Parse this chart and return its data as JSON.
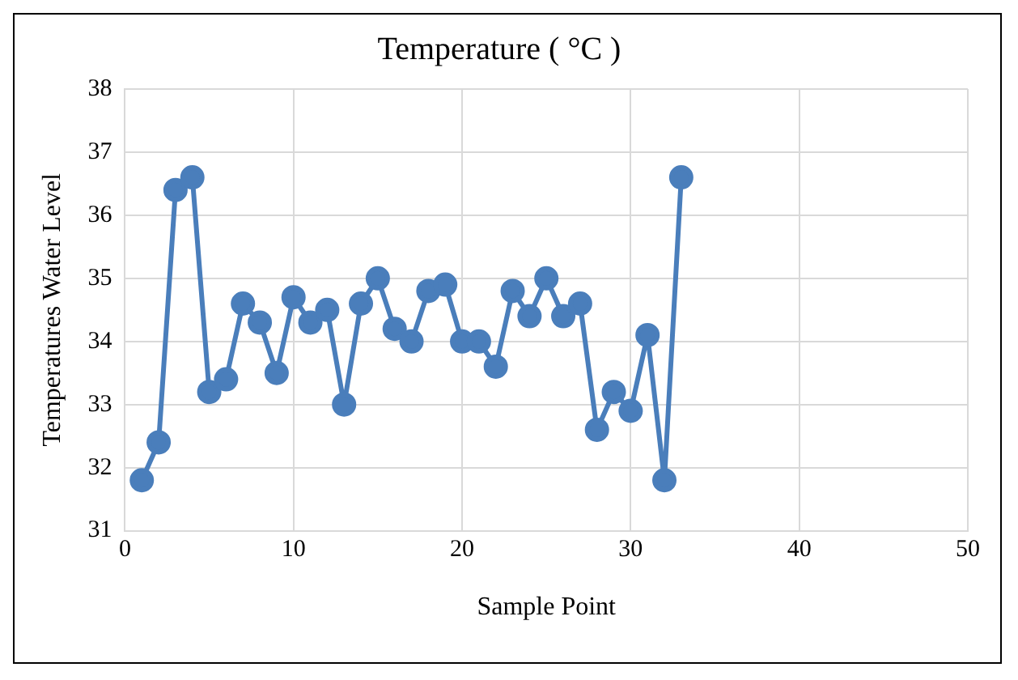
{
  "chart_data": {
    "type": "line",
    "title": "Temperature ( °C )",
    "xlabel": "Sample Point",
    "ylabel": "Temperatures Water Level",
    "x": [
      1,
      2,
      3,
      4,
      5,
      6,
      7,
      8,
      9,
      10,
      11,
      12,
      13,
      14,
      15,
      16,
      17,
      18,
      19,
      20,
      21,
      22,
      23,
      24,
      25,
      26,
      27,
      28,
      29,
      30,
      31,
      32,
      33
    ],
    "series": [
      {
        "color": "#4a7ebb",
        "values": [
          31.8,
          32.4,
          36.4,
          36.6,
          33.2,
          33.4,
          34.6,
          34.3,
          33.5,
          34.7,
          34.3,
          34.5,
          33.0,
          34.6,
          35.0,
          34.2,
          34.0,
          34.8,
          34.9,
          34.0,
          34.0,
          33.6,
          34.8,
          34.4,
          35.0,
          34.4,
          34.6,
          32.6,
          33.2,
          32.9,
          34.1,
          31.8,
          36.6
        ]
      }
    ],
    "xlim": [
      0,
      50
    ],
    "xticks": [
      0,
      10,
      20,
      30,
      40,
      50
    ],
    "ylim": [
      31,
      38
    ],
    "yticks": [
      31,
      32,
      33,
      34,
      35,
      36,
      37,
      38
    ],
    "grid": true,
    "legend": false,
    "marker": "circle",
    "line_style": "solid"
  }
}
